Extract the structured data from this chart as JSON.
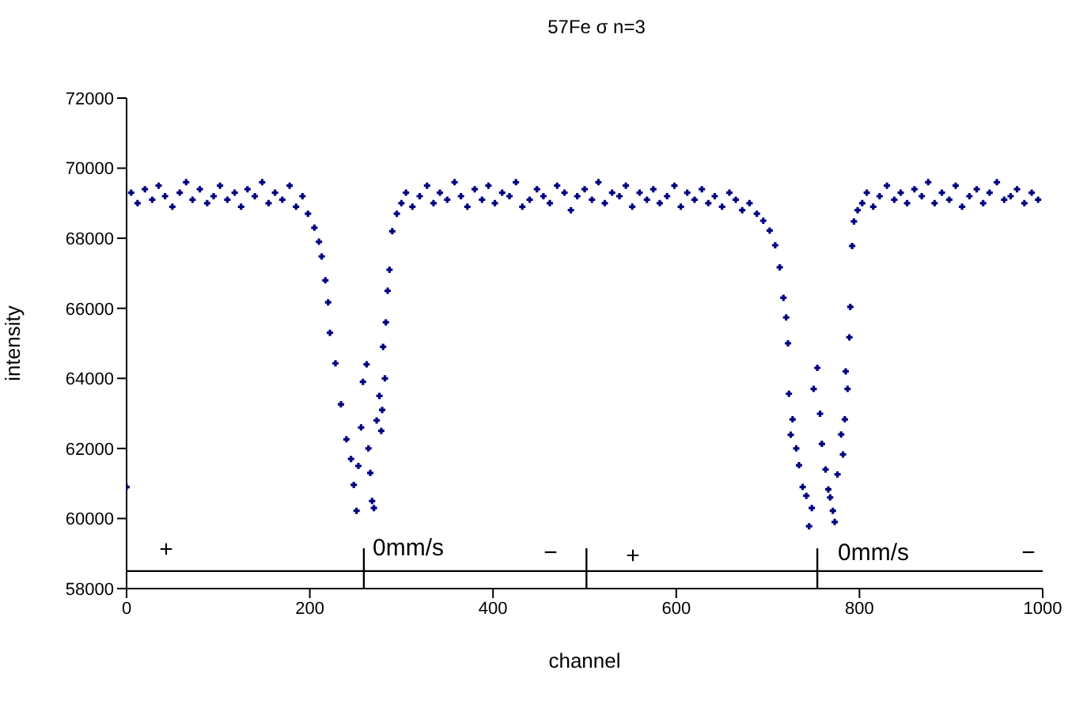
{
  "chart_data": {
    "type": "scatter",
    "title": "57Fe σ n=3",
    "xlabel": "channel",
    "ylabel": "intensity",
    "xlim": [
      0,
      1000
    ],
    "xticks": [
      0,
      200,
      400,
      600,
      800,
      1000
    ],
    "ylim": [
      58000,
      72000
    ],
    "yticks": [
      58000,
      60000,
      62000,
      64000,
      66000,
      68000,
      70000,
      72000
    ],
    "grid": false,
    "legend": false,
    "marker": "cross",
    "series": [
      {
        "color": "#000080",
        "x": [
          0,
          5,
          12,
          20,
          28,
          35,
          42,
          50,
          58,
          65,
          72,
          80,
          88,
          95,
          102,
          110,
          118,
          125,
          132,
          140,
          148,
          155,
          162,
          170,
          178,
          185,
          192,
          198,
          205,
          210,
          213,
          217,
          220,
          222,
          228,
          234,
          240,
          245,
          248,
          251,
          253,
          256,
          258,
          262,
          264,
          266,
          268,
          270,
          273,
          276,
          278,
          279,
          280,
          282,
          283,
          285,
          287,
          290,
          295,
          300,
          305,
          312,
          320,
          328,
          335,
          342,
          350,
          358,
          365,
          372,
          380,
          388,
          395,
          402,
          410,
          418,
          425,
          432,
          440,
          448,
          455,
          462,
          470,
          478,
          485,
          492,
          500,
          508,
          515,
          522,
          530,
          538,
          545,
          552,
          560,
          568,
          575,
          582,
          590,
          598,
          605,
          612,
          620,
          628,
          635,
          642,
          650,
          658,
          665,
          672,
          680,
          688,
          695,
          702,
          708,
          713,
          717,
          720,
          722,
          723,
          725,
          727,
          731,
          734,
          738,
          742,
          745,
          748,
          750,
          754,
          757,
          759,
          763,
          766,
          768,
          771,
          773,
          776,
          780,
          782,
          784,
          785,
          787,
          789,
          790,
          792,
          794,
          798,
          803,
          808,
          815,
          822,
          830,
          838,
          845,
          852,
          860,
          868,
          875,
          882,
          890,
          898,
          905,
          912,
          920,
          928,
          935,
          942,
          950,
          958,
          965,
          972,
          980,
          988,
          995
        ],
        "values": [
          60900,
          69300,
          69000,
          69400,
          69100,
          69500,
          69200,
          68900,
          69300,
          69600,
          69100,
          69400,
          69000,
          69200,
          69500,
          69100,
          69300,
          68900,
          69400,
          69200,
          69600,
          69000,
          69300,
          69100,
          69500,
          68900,
          69200,
          68700,
          68300,
          67900,
          67480,
          66800,
          66170,
          65300,
          64430,
          63260,
          62260,
          61700,
          60960,
          60220,
          61500,
          62600,
          63900,
          64400,
          62000,
          61300,
          60500,
          60300,
          62800,
          63500,
          62500,
          63100,
          64900,
          64000,
          65600,
          66500,
          67100,
          68200,
          68700,
          69000,
          69300,
          68900,
          69200,
          69500,
          69000,
          69300,
          69100,
          69600,
          69200,
          68900,
          69400,
          69100,
          69500,
          69000,
          69300,
          69200,
          69600,
          68900,
          69100,
          69400,
          69200,
          69000,
          69500,
          69300,
          68800,
          69200,
          69400,
          69100,
          69600,
          69000,
          69300,
          69200,
          69500,
          68900,
          69300,
          69100,
          69400,
          69000,
          69200,
          69500,
          68900,
          69300,
          69100,
          69400,
          69000,
          69200,
          68900,
          69300,
          69100,
          68800,
          69000,
          68700,
          68500,
          68220,
          67800,
          67170,
          66300,
          65740,
          65000,
          63560,
          62390,
          62830,
          62000,
          61520,
          60900,
          60650,
          59780,
          60300,
          63700,
          64300,
          62990,
          62130,
          61400,
          60830,
          60600,
          60220,
          59900,
          61260,
          62400,
          61830,
          62830,
          64200,
          63700,
          65170,
          66040,
          67780,
          68480,
          68800,
          69000,
          69300,
          68900,
          69200,
          69500,
          69100,
          69300,
          69000,
          69400,
          69200,
          69600,
          69000,
          69300,
          69100,
          69500,
          68900,
          69200,
          69400,
          69000,
          69300,
          69600,
          69100,
          69200,
          69400,
          69000,
          69300,
          69100
        ]
      }
    ],
    "ref_lines": [
      {
        "axis": "y",
        "value": 58500,
        "color": "#000000"
      },
      {
        "axis": "x",
        "value": 259,
        "color": "#000000"
      },
      {
        "axis": "x",
        "value": 502,
        "color": "#000000"
      },
      {
        "axis": "x",
        "value": 754,
        "color": "#000000"
      }
    ],
    "annotations": [
      "+",
      "0mm/s",
      "−",
      "+",
      "0mm/s",
      "−"
    ]
  }
}
